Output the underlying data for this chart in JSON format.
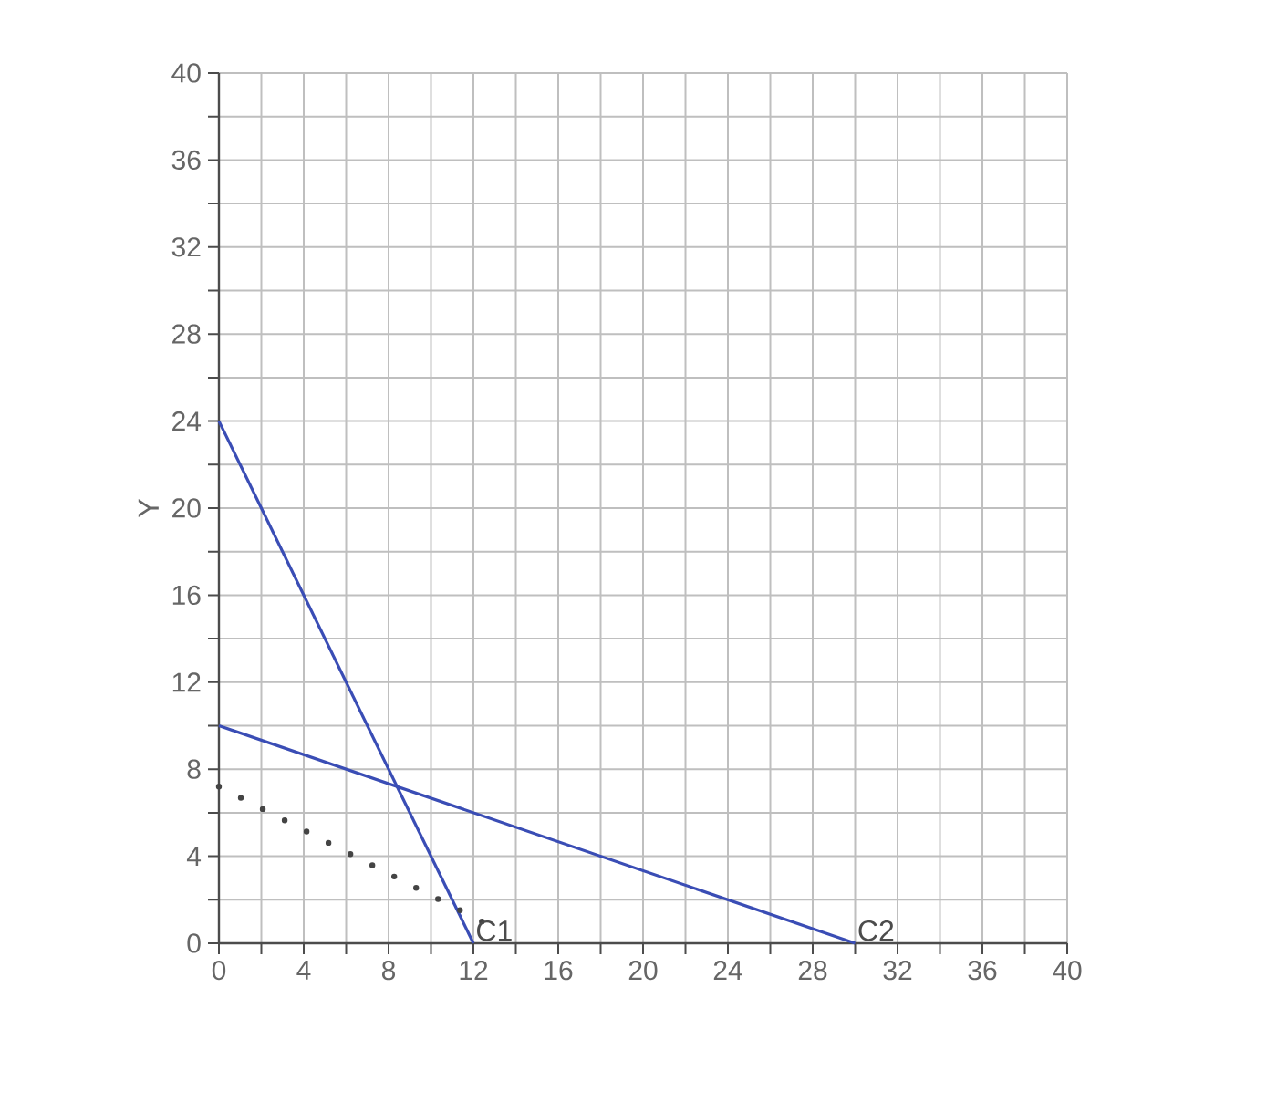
{
  "chart_data": {
    "type": "line",
    "ylabel": "Y",
    "xlim": [
      0,
      40
    ],
    "ylim": [
      0,
      40
    ],
    "xticks": [
      0,
      {
        "value": 2,
        "label": null
      },
      4,
      {
        "value": 6,
        "label": null
      },
      8,
      {
        "value": 10,
        "label": null
      },
      12,
      {
        "value": 14,
        "label": null
      },
      16,
      {
        "value": 18,
        "label": null
      },
      20,
      {
        "value": 22,
        "label": null
      },
      24,
      {
        "value": 26,
        "label": null
      },
      28,
      {
        "value": 30,
        "label": null
      },
      32,
      {
        "value": 34,
        "label": null
      },
      36,
      {
        "value": 38,
        "label": null
      },
      40
    ],
    "yticks": [
      0,
      {
        "value": 2,
        "label": null
      },
      4,
      {
        "value": 6,
        "label": null
      },
      8,
      {
        "value": 10,
        "label": null
      },
      12,
      {
        "value": 14,
        "label": null
      },
      16,
      {
        "value": 18,
        "label": null
      },
      20,
      {
        "value": 22,
        "label": null
      },
      24,
      {
        "value": 26,
        "label": null
      },
      28,
      {
        "value": 30,
        "label": null
      },
      32,
      {
        "value": 34,
        "label": null
      },
      36,
      {
        "value": 38,
        "label": null
      },
      40
    ],
    "grid": true,
    "series": [
      {
        "color": "#3a4db5",
        "x": [
          0,
          12
        ],
        "values": [
          24,
          0
        ]
      },
      {
        "color": "#3a4db5",
        "x": [
          0,
          30
        ],
        "values": [
          10,
          0
        ]
      },
      {
        "line_style": "dotted",
        "color": "#444444",
        "x": [
          0,
          13.2
        ],
        "values": [
          7.2,
          0.6
        ]
      }
    ],
    "annotations": [
      {
        "text": "C1",
        "x": 12,
        "y": 0
      },
      {
        "text": "C2",
        "x": 30,
        "y": 0
      }
    ]
  }
}
